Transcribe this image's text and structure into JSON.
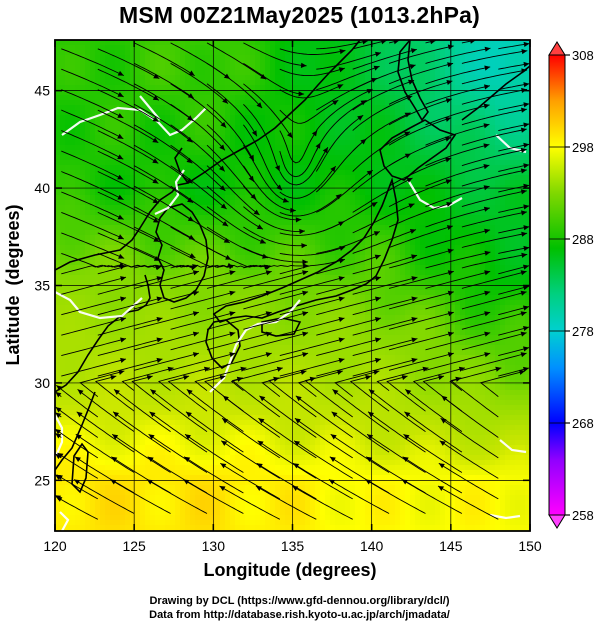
{
  "title": "MSM 00Z21May2025 (1013.2hPa)",
  "xlabel": "Longitude (degrees)",
  "ylabel": "Latitude  (degrees)",
  "x_ticks": [
    {
      "value": 120,
      "label": "120"
    },
    {
      "value": 125,
      "label": "125"
    },
    {
      "value": 130,
      "label": "130"
    },
    {
      "value": 135,
      "label": "135"
    },
    {
      "value": 140,
      "label": "140"
    },
    {
      "value": 145,
      "label": "145"
    },
    {
      "value": 150,
      "label": "150"
    }
  ],
  "y_ticks": [
    {
      "value": 25,
      "label": "25"
    },
    {
      "value": 30,
      "label": "30"
    },
    {
      "value": 35,
      "label": "35"
    },
    {
      "value": 40,
      "label": "40"
    },
    {
      "value": 45,
      "label": "45"
    }
  ],
  "lon_range": [
    120,
    150
  ],
  "lat_range": [
    22.4,
    47.6
  ],
  "colorbar": {
    "range": [
      258,
      308
    ],
    "ticks": [
      {
        "value": 308,
        "label": "308"
      },
      {
        "value": 298,
        "label": "298"
      },
      {
        "value": 288,
        "label": "288"
      },
      {
        "value": 278,
        "label": "278"
      },
      {
        "value": 268,
        "label": "268"
      },
      {
        "value": 258,
        "label": "258"
      }
    ],
    "colors": [
      "#ff00ff",
      "#0000ff",
      "#00a0ff",
      "#00d0a0",
      "#00c000",
      "#40d000",
      "#a0e000",
      "#ffff00",
      "#ffa000",
      "#ff0000"
    ]
  },
  "credits": {
    "line1": "Drawing by DCL (https://www.gfd-dennou.org/library/dcl/)",
    "line2": "Data from http://database.rish.kyoto-u.ac.jp/arch/jmadata/"
  },
  "chart_data": {
    "type": "heatmap",
    "variable_units": "K",
    "field_description_is_not_printed": true,
    "x": "longitude",
    "y": "latitude",
    "xlim": [
      120,
      150
    ],
    "ylim": [
      22.4,
      47.6
    ],
    "grid": true,
    "colorbar_range": [
      258,
      308
    ],
    "temperature_field_approx": [
      {
        "lat": 46,
        "values_by_lon": {
          "120": 288,
          "130": 289,
          "140": 285,
          "148": 279
        }
      },
      {
        "lat": 40,
        "values_by_lon": {
          "120": 288,
          "130": 287,
          "140": 287,
          "148": 285
        }
      },
      {
        "lat": 35,
        "values_by_lon": {
          "120": 292,
          "130": 291,
          "140": 290,
          "148": 287
        }
      },
      {
        "lat": 30,
        "values_by_lon": {
          "120": 295,
          "130": 295,
          "140": 294,
          "148": 291
        }
      },
      {
        "lat": 25,
        "values_by_lon": {
          "120": 299,
          "130": 299,
          "140": 298,
          "148": 298
        }
      }
    ],
    "overlays": [
      "streamlines",
      "coastlines",
      "freezing-line contours (white)"
    ]
  }
}
